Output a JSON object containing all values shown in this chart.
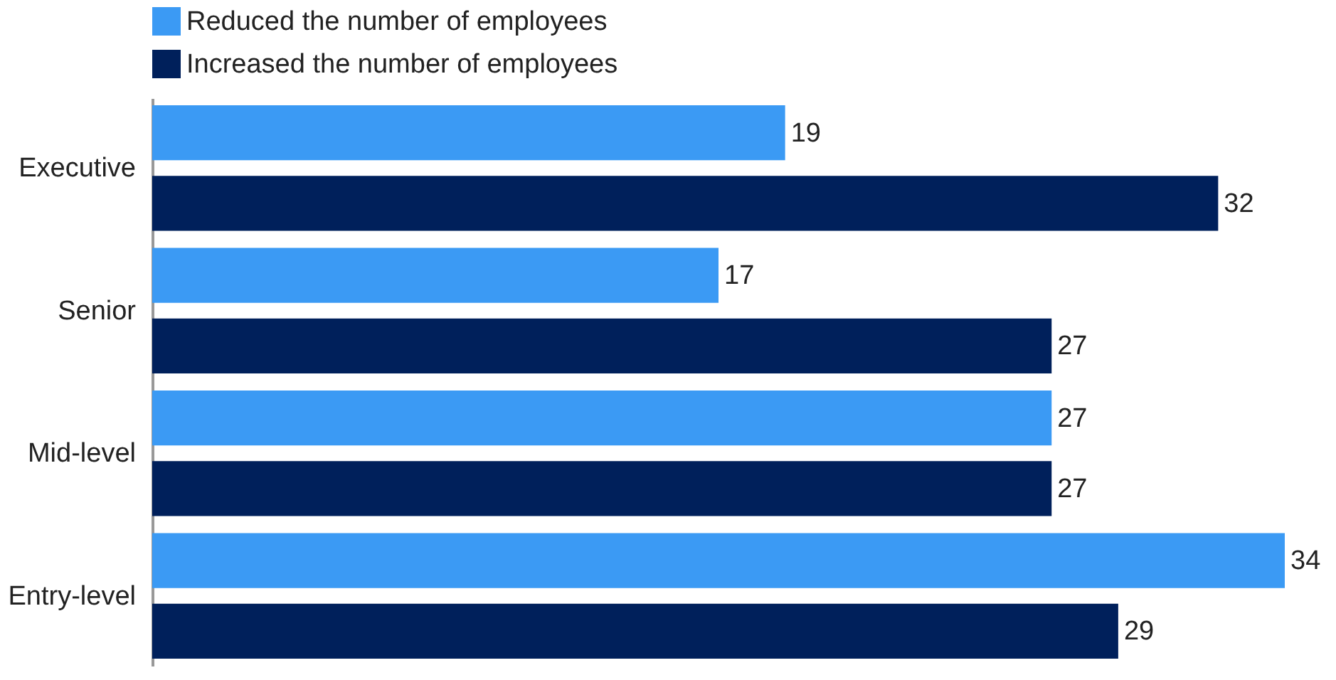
{
  "chart_data": {
    "type": "bar",
    "orientation": "horizontal",
    "categories": [
      "Executive",
      "Senior",
      "Mid-level",
      "Entry-level"
    ],
    "series": [
      {
        "name": "Reduced the number of employees",
        "color": "#3b9af4",
        "values": [
          19,
          17,
          27,
          34
        ]
      },
      {
        "name": "Increased the number of employees",
        "color": "#00205b",
        "values": [
          32,
          27,
          27,
          29
        ]
      }
    ],
    "tick_labels": "y",
    "data_labels": true,
    "grid": false,
    "legend": "top left"
  }
}
